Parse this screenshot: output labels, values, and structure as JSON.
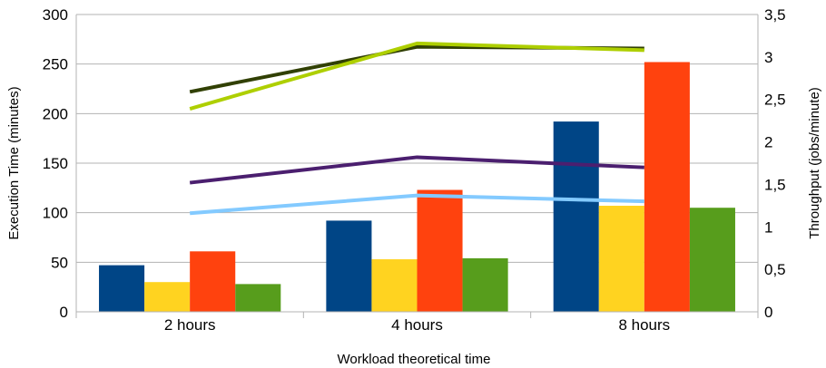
{
  "chart_data": {
    "type": "bar",
    "title": "",
    "xlabel": "Workload theoretical time",
    "ylabel": "Execution Time (minutes)",
    "y2label": "Throughput (jobs/minute)",
    "categories": [
      "2 hours",
      "4 hours",
      "8 hours"
    ],
    "ylim": [
      0,
      300
    ],
    "y2lim": [
      0,
      3.5
    ],
    "y_ticks": [
      "0",
      "50",
      "100",
      "150",
      "200",
      "250",
      "300"
    ],
    "y2_ticks": [
      "0",
      "0,5",
      "1",
      "1,5",
      "2",
      "2,5",
      "3",
      "3,5"
    ],
    "grid": true,
    "legend": "none",
    "bar_series": [
      {
        "color": "#004586",
        "values": [
          47,
          92,
          192
        ]
      },
      {
        "color": "#ffd320",
        "values": [
          30,
          53,
          107
        ]
      },
      {
        "color": "#ff420e",
        "values": [
          61,
          123,
          252
        ]
      },
      {
        "color": "#579d1c",
        "values": [
          28,
          54,
          105
        ]
      }
    ],
    "line_series": [
      {
        "axis": "right",
        "color": "#314004",
        "values": [
          2.59,
          3.12,
          3.1
        ]
      },
      {
        "axis": "right",
        "color": "#aecf00",
        "values": [
          2.39,
          3.16,
          3.08
        ]
      },
      {
        "axis": "right",
        "color": "#4b1f6f",
        "values": [
          1.52,
          1.82,
          1.7
        ]
      },
      {
        "axis": "right",
        "color": "#83caff",
        "values": [
          1.16,
          1.37,
          1.3
        ]
      }
    ]
  }
}
